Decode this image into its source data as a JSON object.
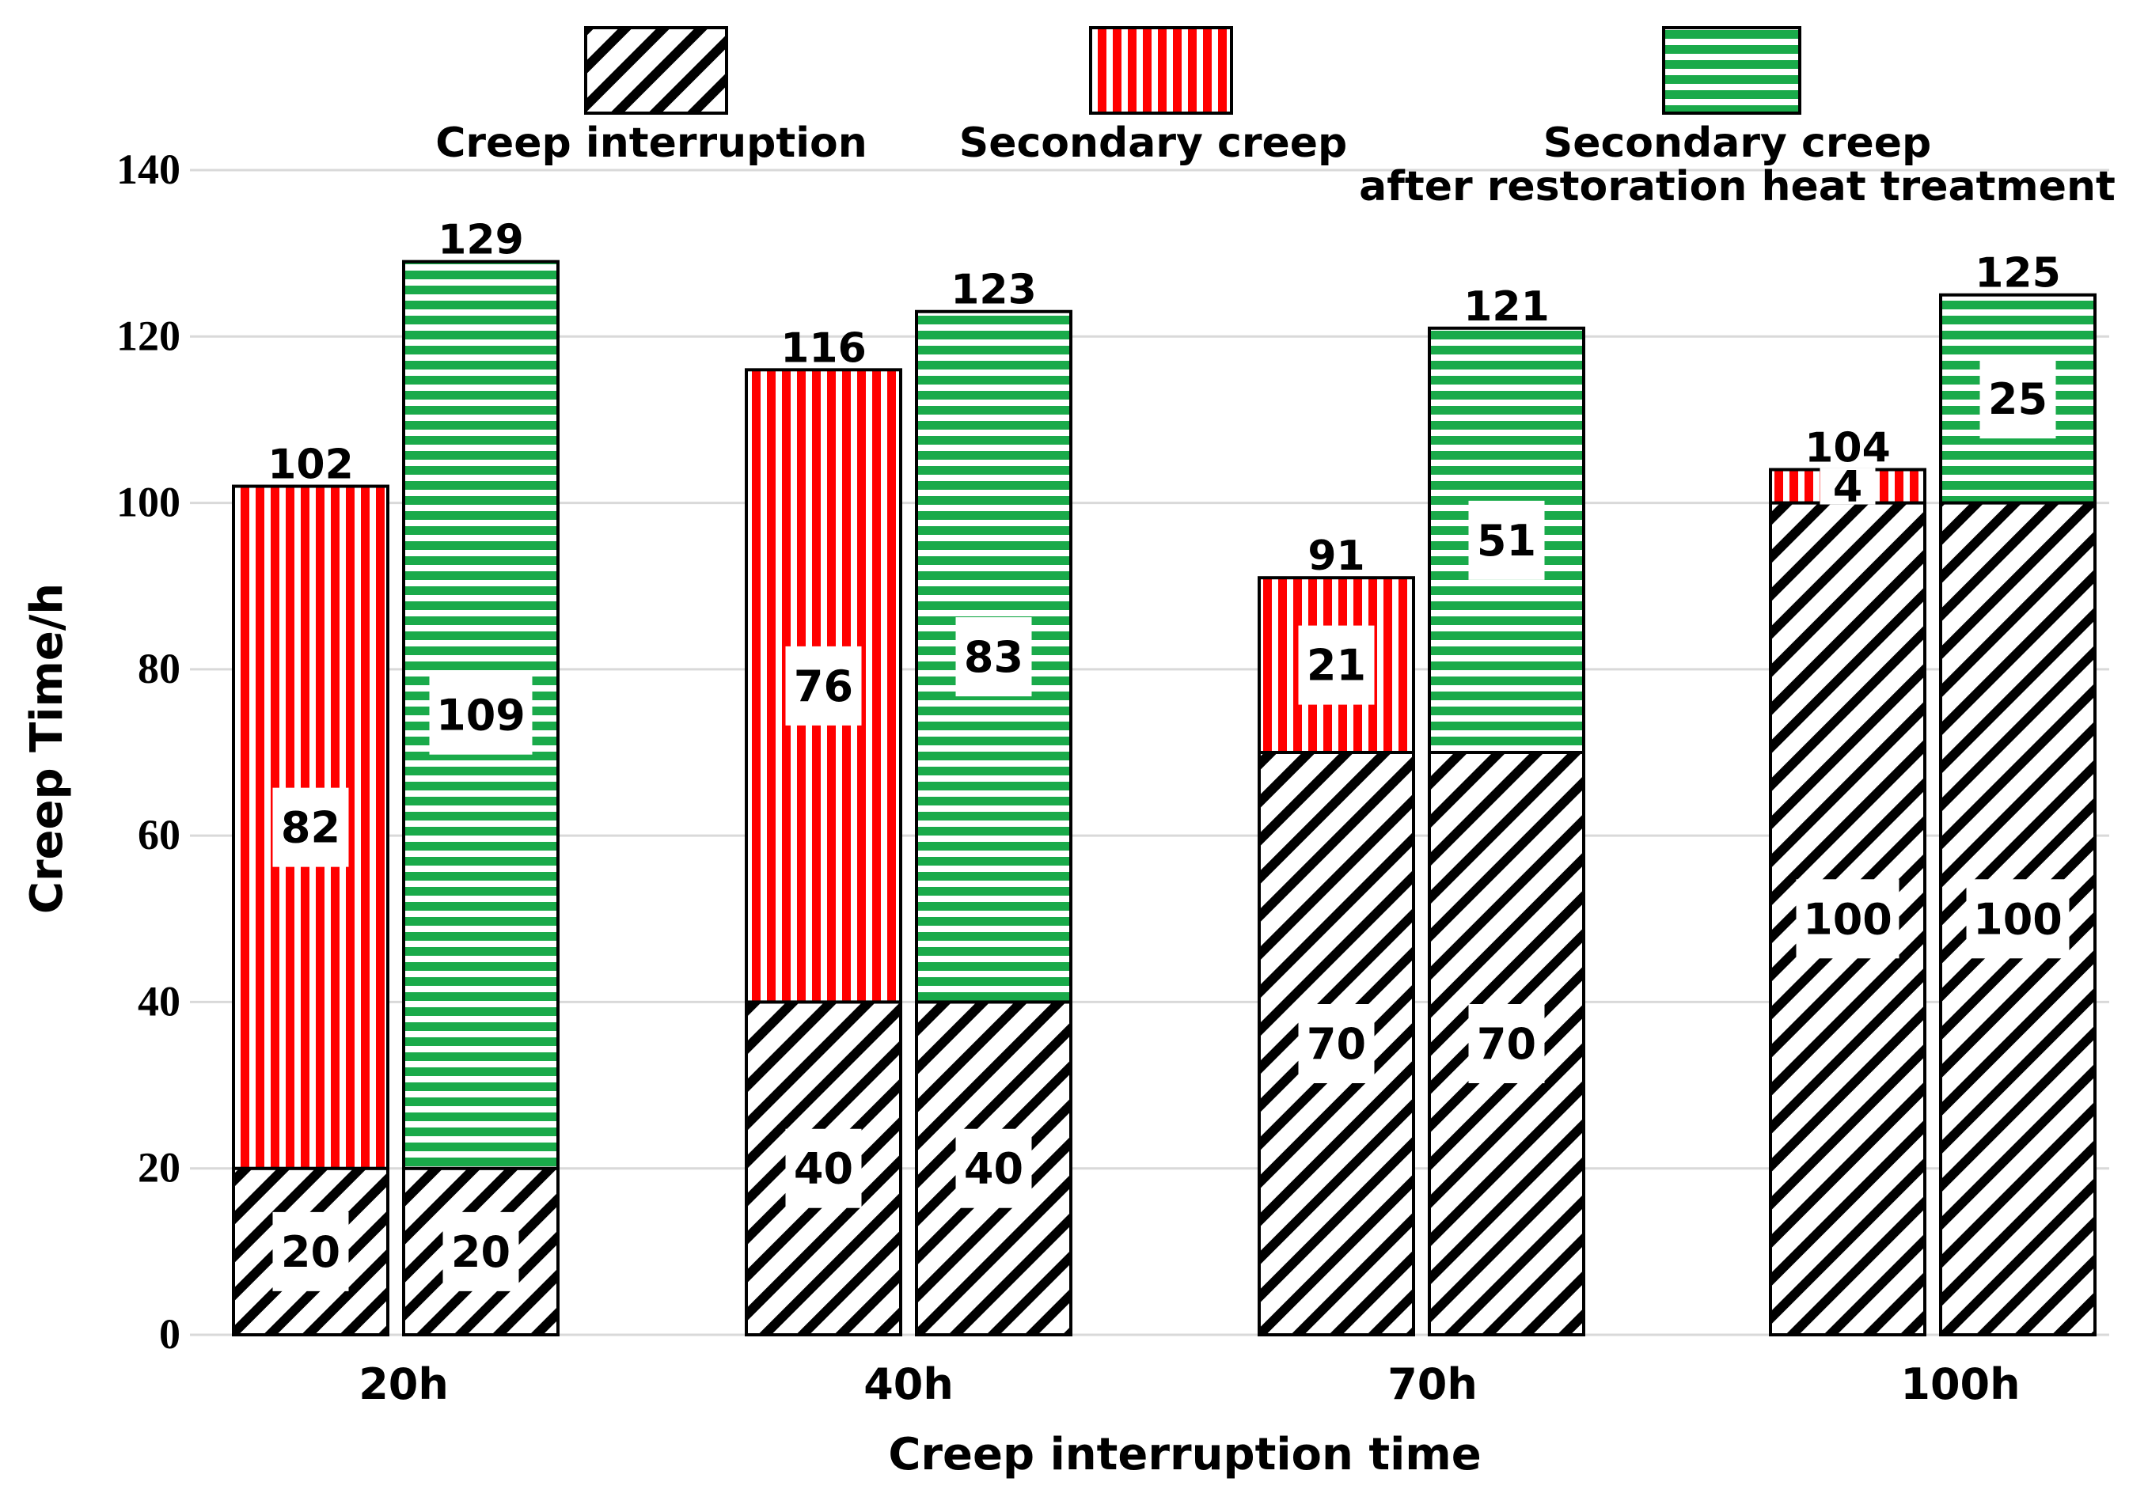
{
  "chart_data": {
    "type": "bar",
    "stacked": true,
    "ylabel": "Creep Time/h",
    "xlabel": "Creep interruption time",
    "ylim": [
      0,
      140
    ],
    "yticks": [
      0,
      20,
      40,
      60,
      80,
      100,
      120,
      140
    ],
    "grid": true,
    "categories": [
      "20h",
      "40h",
      "70h",
      "100h"
    ],
    "legend": {
      "placement": "top",
      "items": [
        {
          "key": "interrupt",
          "label": "Creep interruption",
          "label_lines": [
            "Creep interruption"
          ]
        },
        {
          "key": "secondary",
          "label": "Secondary creep",
          "label_lines": [
            "Secondary creep"
          ]
        },
        {
          "key": "restored",
          "label": "Secondary creep after restoration heat treatment",
          "label_lines": [
            "Secondary creep",
            "after restoration heat treatment"
          ]
        }
      ]
    },
    "colors": {
      "secondary": "#ff0000",
      "restored": "#1aaa4a",
      "interrupt": "#000000",
      "grid": "#d9d9d9"
    },
    "bars": [
      {
        "category": "20h",
        "series": "Secondary creep",
        "segments": [
          {
            "key": "interrupt",
            "value": 20
          },
          {
            "key": "secondary",
            "value": 82
          }
        ],
        "total": 102
      },
      {
        "category": "20h",
        "series": "Secondary creep after restoration heat treatment",
        "segments": [
          {
            "key": "interrupt",
            "value": 20
          },
          {
            "key": "restored",
            "value": 109
          }
        ],
        "total": 129
      },
      {
        "category": "40h",
        "series": "Secondary creep",
        "segments": [
          {
            "key": "interrupt",
            "value": 40
          },
          {
            "key": "secondary",
            "value": 76
          }
        ],
        "total": 116
      },
      {
        "category": "40h",
        "series": "Secondary creep after restoration heat treatment",
        "segments": [
          {
            "key": "interrupt",
            "value": 40
          },
          {
            "key": "restored",
            "value": 83
          }
        ],
        "total": 123
      },
      {
        "category": "70h",
        "series": "Secondary creep",
        "segments": [
          {
            "key": "interrupt",
            "value": 70
          },
          {
            "key": "secondary",
            "value": 21
          }
        ],
        "total": 91
      },
      {
        "category": "70h",
        "series": "Secondary creep after restoration heat treatment",
        "segments": [
          {
            "key": "interrupt",
            "value": 70
          },
          {
            "key": "restored",
            "value": 51
          }
        ],
        "total": 121
      },
      {
        "category": "100h",
        "series": "Secondary creep",
        "segments": [
          {
            "key": "interrupt",
            "value": 100
          },
          {
            "key": "secondary",
            "value": 4
          }
        ],
        "total": 104
      },
      {
        "category": "100h",
        "series": "Secondary creep after restoration heat treatment",
        "segments": [
          {
            "key": "interrupt",
            "value": 100
          },
          {
            "key": "restored",
            "value": 25
          }
        ],
        "total": 125
      }
    ]
  }
}
